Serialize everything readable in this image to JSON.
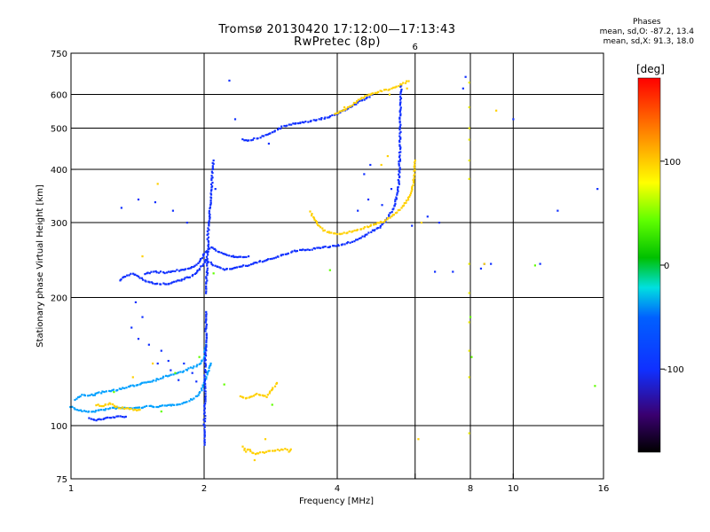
{
  "header": {
    "title": "Tromsø 20130420 17:12:00—17:13:43",
    "subtitle": "RwPretec (8p)"
  },
  "phase_stats": {
    "heading": "Phases",
    "line_o": "mean, sd,O: -87.2, 13.4",
    "line_x": "mean, sd,X:  91.3, 18.0"
  },
  "colorbar": {
    "label": "[deg]",
    "min": -180,
    "max": 180,
    "ticks": [
      {
        "value": 100,
        "label": "100"
      },
      {
        "value": 0,
        "label": "0"
      },
      {
        "value": -100,
        "label": "-100"
      }
    ]
  },
  "chart_data": {
    "type": "scatter",
    "title": "Tromsø 20130420 17:12:00—17:13:43",
    "subtitle": "RwPretec (8p)",
    "xlabel": "Frequency [MHz]",
    "ylabel": "Stationary phase Virtual Height [km]",
    "xscale": "log",
    "yscale": "log",
    "xlim": [
      1,
      16
    ],
    "ylim": [
      75,
      750
    ],
    "xticks": [
      {
        "v": 1,
        "l": "1"
      },
      {
        "v": 2,
        "l": "2"
      },
      {
        "v": 4,
        "l": "4"
      },
      {
        "v": 6,
        "l": ""
      },
      {
        "v": 8,
        "l": "8"
      },
      {
        "v": 10,
        "l": "10"
      },
      {
        "v": 16,
        "l": "16"
      }
    ],
    "yticks": [
      {
        "v": 75,
        "l": "75"
      },
      {
        "v": 100,
        "l": "100"
      },
      {
        "v": 200,
        "l": "200"
      },
      {
        "v": 300,
        "l": "300"
      },
      {
        "v": 400,
        "l": "400"
      },
      {
        "v": 500,
        "l": "500"
      },
      {
        "v": 600,
        "l": "600"
      },
      {
        "v": 750,
        "l": "750"
      }
    ],
    "xgrid": [
      2,
      4,
      6,
      8,
      10
    ],
    "ygrid": [
      100,
      200,
      300,
      400,
      500,
      600
    ],
    "xticks_top": [
      {
        "v": 6,
        "l": "6"
      }
    ],
    "color_key": "phase [deg]",
    "traces": [
      {
        "name": "E-low",
        "phase": -95,
        "pts": [
          [
            1.0,
            111
          ],
          [
            1.03,
            109
          ],
          [
            1.07,
            108
          ],
          [
            1.12,
            108
          ],
          [
            1.18,
            109
          ],
          [
            1.25,
            110
          ],
          [
            1.32,
            110
          ],
          [
            1.4,
            110
          ],
          [
            1.5,
            111
          ],
          [
            1.6,
            111
          ],
          [
            1.7,
            112
          ],
          [
            1.8,
            113
          ],
          [
            1.9,
            116
          ],
          [
            1.97,
            121
          ],
          [
            2.0,
            127
          ],
          [
            2.04,
            134
          ],
          [
            2.07,
            140
          ]
        ]
      },
      {
        "name": "E-mid",
        "phase": -95,
        "pts": [
          [
            1.02,
            115
          ],
          [
            1.06,
            118
          ],
          [
            1.12,
            118
          ],
          [
            1.18,
            120
          ],
          [
            1.24,
            121
          ],
          [
            1.3,
            122
          ],
          [
            1.38,
            124
          ],
          [
            1.45,
            126
          ],
          [
            1.55,
            128
          ],
          [
            1.65,
            131
          ],
          [
            1.75,
            133
          ],
          [
            1.85,
            136
          ],
          [
            1.95,
            139
          ],
          [
            2.0,
            145
          ],
          [
            2.02,
            155
          ]
        ]
      },
      {
        "name": "E-vert",
        "phase": -100,
        "pts": [
          [
            2.0,
            90
          ],
          [
            2.0,
            100
          ],
          [
            2.01,
            113
          ],
          [
            2.01,
            125
          ],
          [
            2.01,
            140
          ],
          [
            2.02,
            160
          ],
          [
            2.02,
            175
          ],
          [
            2.02,
            185
          ]
        ]
      },
      {
        "name": "Es-gap",
        "phase": -105,
        "pts": [
          [
            1.1,
            104
          ],
          [
            1.14,
            103
          ],
          [
            1.2,
            104
          ],
          [
            1.27,
            105
          ],
          [
            1.33,
            105
          ]
        ]
      },
      {
        "name": "E-yellow",
        "phase": 95,
        "pts": [
          [
            1.14,
            112
          ],
          [
            1.18,
            111
          ],
          [
            1.22,
            113
          ],
          [
            1.28,
            110
          ],
          [
            1.33,
            110
          ],
          [
            1.38,
            109
          ],
          [
            1.43,
            109
          ]
        ]
      },
      {
        "name": "E2-yellow",
        "phase": 95,
        "pts": [
          [
            2.42,
            117
          ],
          [
            2.5,
            116
          ],
          [
            2.57,
            117
          ],
          [
            2.63,
            119
          ],
          [
            2.7,
            118
          ],
          [
            2.78,
            117
          ],
          [
            2.85,
            122
          ],
          [
            2.92,
            126
          ]
        ]
      },
      {
        "name": "E3-yellow",
        "phase": 95,
        "pts": [
          [
            2.45,
            89
          ],
          [
            2.48,
            87
          ],
          [
            2.52,
            88
          ],
          [
            2.58,
            86
          ],
          [
            3.05,
            88
          ],
          [
            3.1,
            87
          ],
          [
            3.14,
            88
          ]
        ]
      },
      {
        "name": "F1-lower",
        "phase": -100,
        "pts": [
          [
            1.29,
            220
          ],
          [
            1.33,
            224
          ],
          [
            1.38,
            228
          ],
          [
            1.43,
            223
          ],
          [
            1.48,
            219
          ],
          [
            1.53,
            216
          ],
          [
            1.6,
            215
          ],
          [
            1.67,
            216
          ],
          [
            1.73,
            218
          ],
          [
            1.8,
            221
          ],
          [
            1.86,
            224
          ],
          [
            1.92,
            228
          ],
          [
            1.97,
            236
          ],
          [
            2.02,
            245
          ],
          [
            2.08,
            240
          ],
          [
            2.15,
            236
          ],
          [
            2.22,
            233
          ],
          [
            2.3,
            234
          ],
          [
            2.4,
            236
          ],
          [
            2.5,
            238
          ],
          [
            2.62,
            241
          ],
          [
            2.75,
            245
          ],
          [
            2.9,
            248
          ],
          [
            3.05,
            253
          ],
          [
            3.2,
            257
          ],
          [
            3.4,
            259
          ],
          [
            3.6,
            261
          ],
          [
            3.8,
            263
          ],
          [
            4.0,
            265
          ],
          [
            4.2,
            268
          ],
          [
            4.4,
            273
          ],
          [
            4.6,
            279
          ],
          [
            4.8,
            287
          ],
          [
            5.0,
            292
          ]
        ]
      },
      {
        "name": "F1-upper",
        "phase": -100,
        "pts": [
          [
            1.47,
            228
          ],
          [
            1.55,
            230
          ],
          [
            1.63,
            229
          ],
          [
            1.72,
            231
          ],
          [
            1.8,
            233
          ],
          [
            1.88,
            236
          ],
          [
            1.94,
            240
          ],
          [
            1.98,
            248
          ],
          [
            2.02,
            258
          ],
          [
            2.07,
            262
          ],
          [
            2.13,
            258
          ],
          [
            2.2,
            254
          ],
          [
            2.3,
            250
          ],
          [
            2.4,
            249
          ],
          [
            2.52,
            250
          ]
        ]
      },
      {
        "name": "F-vert",
        "phase": -100,
        "pts": [
          [
            2.02,
            205
          ],
          [
            2.02,
            215
          ],
          [
            2.03,
            230
          ],
          [
            2.03,
            245
          ],
          [
            2.04,
            260
          ],
          [
            2.04,
            280
          ],
          [
            2.05,
            300
          ],
          [
            2.06,
            320
          ],
          [
            2.07,
            345
          ],
          [
            2.08,
            370
          ],
          [
            2.09,
            395
          ],
          [
            2.1,
            420
          ]
        ]
      },
      {
        "name": "F-o",
        "phase": -100,
        "pts": [
          [
            5.0,
            295
          ],
          [
            5.1,
            300
          ],
          [
            5.2,
            308
          ],
          [
            5.3,
            318
          ],
          [
            5.4,
            330
          ],
          [
            5.45,
            345
          ],
          [
            5.5,
            365
          ],
          [
            5.52,
            390
          ],
          [
            5.53,
            420
          ],
          [
            5.54,
            450
          ],
          [
            5.55,
            480
          ],
          [
            5.55,
            520
          ],
          [
            5.56,
            560
          ],
          [
            5.57,
            600
          ],
          [
            5.58,
            630
          ]
        ]
      },
      {
        "name": "F-x",
        "phase": 90,
        "pts": [
          [
            3.48,
            318
          ],
          [
            3.55,
            305
          ],
          [
            3.62,
            296
          ],
          [
            3.72,
            288
          ],
          [
            3.85,
            284
          ],
          [
            4.0,
            282
          ],
          [
            4.15,
            283
          ],
          [
            4.3,
            286
          ],
          [
            4.5,
            290
          ],
          [
            4.7,
            294
          ],
          [
            4.9,
            298
          ],
          [
            5.1,
            302
          ],
          [
            5.3,
            310
          ],
          [
            5.5,
            320
          ],
          [
            5.65,
            330
          ],
          [
            5.8,
            343
          ],
          [
            5.9,
            358
          ],
          [
            5.95,
            375
          ],
          [
            5.97,
            395
          ],
          [
            6.0,
            420
          ]
        ]
      },
      {
        "name": "M-o",
        "phase": -100,
        "pts": [
          [
            2.45,
            470
          ],
          [
            2.5,
            468
          ],
          [
            2.6,
            472
          ],
          [
            2.7,
            478
          ],
          [
            2.8,
            485
          ],
          [
            2.9,
            493
          ],
          [
            3.0,
            503
          ],
          [
            3.2,
            513
          ],
          [
            3.4,
            518
          ],
          [
            3.6,
            524
          ],
          [
            3.8,
            530
          ],
          [
            4.0,
            540
          ],
          [
            4.2,
            555
          ],
          [
            4.4,
            570
          ],
          [
            4.6,
            585
          ],
          [
            4.8,
            600
          ]
        ]
      },
      {
        "name": "M-x",
        "phase": 85,
        "pts": [
          [
            3.95,
            540
          ],
          [
            4.1,
            548
          ],
          [
            4.3,
            565
          ],
          [
            4.5,
            585
          ],
          [
            4.7,
            600
          ],
          [
            5.0,
            610
          ],
          [
            5.3,
            620
          ],
          [
            5.5,
            630
          ],
          [
            5.7,
            640
          ],
          [
            5.8,
            645
          ]
        ]
      },
      {
        "name": "right-col",
        "phase": 60,
        "pts": [
          [
            7.95,
            640
          ],
          [
            7.95,
            560
          ],
          [
            7.95,
            500
          ],
          [
            7.95,
            470
          ],
          [
            7.95,
            420
          ],
          [
            7.95,
            380
          ],
          [
            7.95,
            240
          ],
          [
            7.95,
            205
          ],
          [
            7.95,
            175
          ],
          [
            7.95,
            150
          ],
          [
            7.95,
            130
          ],
          [
            7.95,
            96
          ]
        ]
      },
      {
        "name": "scatter-mid",
        "phase": -100,
        "pts": [
          [
            1.37,
            170
          ],
          [
            1.4,
            195
          ],
          [
            1.45,
            180
          ],
          [
            1.42,
            160
          ],
          [
            1.5,
            155
          ],
          [
            1.57,
            140
          ],
          [
            1.68,
            135
          ],
          [
            1.75,
            128
          ],
          [
            1.8,
            140
          ],
          [
            1.88,
            133
          ],
          [
            1.6,
            150
          ],
          [
            1.66,
            142
          ],
          [
            1.92,
            127
          ],
          [
            1.3,
            325
          ],
          [
            1.42,
            340
          ],
          [
            1.55,
            335
          ],
          [
            1.7,
            320
          ],
          [
            1.83,
            300
          ],
          [
            2.12,
            360
          ],
          [
            2.28,
            647
          ],
          [
            2.35,
            525
          ],
          [
            2.8,
            460
          ],
          [
            4.45,
            320
          ],
          [
            4.7,
            340
          ],
          [
            5.05,
            330
          ],
          [
            5.3,
            360
          ],
          [
            6.4,
            310
          ],
          [
            6.8,
            300
          ],
          [
            7.7,
            620
          ],
          [
            8.6,
            240
          ],
          [
            8.9,
            240
          ],
          [
            11.5,
            240
          ],
          [
            12.6,
            320
          ],
          [
            15.5,
            360
          ],
          [
            10.0,
            525
          ],
          [
            6.65,
            230
          ],
          [
            7.3,
            230
          ],
          [
            8.45,
            234
          ],
          [
            7.8,
            660
          ],
          [
            5.9,
            295
          ],
          [
            4.6,
            390
          ],
          [
            4.75,
            410
          ]
        ]
      },
      {
        "name": "scatter-x",
        "phase": 100,
        "pts": [
          [
            1.45,
            250
          ],
          [
            1.57,
            370
          ],
          [
            1.53,
            140
          ],
          [
            1.38,
            130
          ],
          [
            5.03,
            410
          ],
          [
            5.2,
            430
          ],
          [
            6.2,
            300
          ],
          [
            6.1,
            93
          ],
          [
            8.6,
            240
          ],
          [
            9.15,
            550
          ],
          [
            5.75,
            620
          ],
          [
            5.25,
            600
          ],
          [
            4.15,
            560
          ],
          [
            2.6,
            83
          ],
          [
            2.75,
            93
          ]
        ]
      },
      {
        "name": "scatter-misc",
        "phase": 20,
        "pts": [
          [
            1.25,
            120
          ],
          [
            1.6,
            108
          ],
          [
            1.72,
            133
          ],
          [
            1.95,
            145
          ],
          [
            2.22,
            125
          ],
          [
            2.85,
            112
          ],
          [
            3.85,
            232
          ],
          [
            8.0,
            180
          ],
          [
            8.05,
            145
          ],
          [
            15.3,
            124
          ],
          [
            11.2,
            238
          ],
          [
            2.1,
            228
          ]
        ]
      }
    ]
  }
}
